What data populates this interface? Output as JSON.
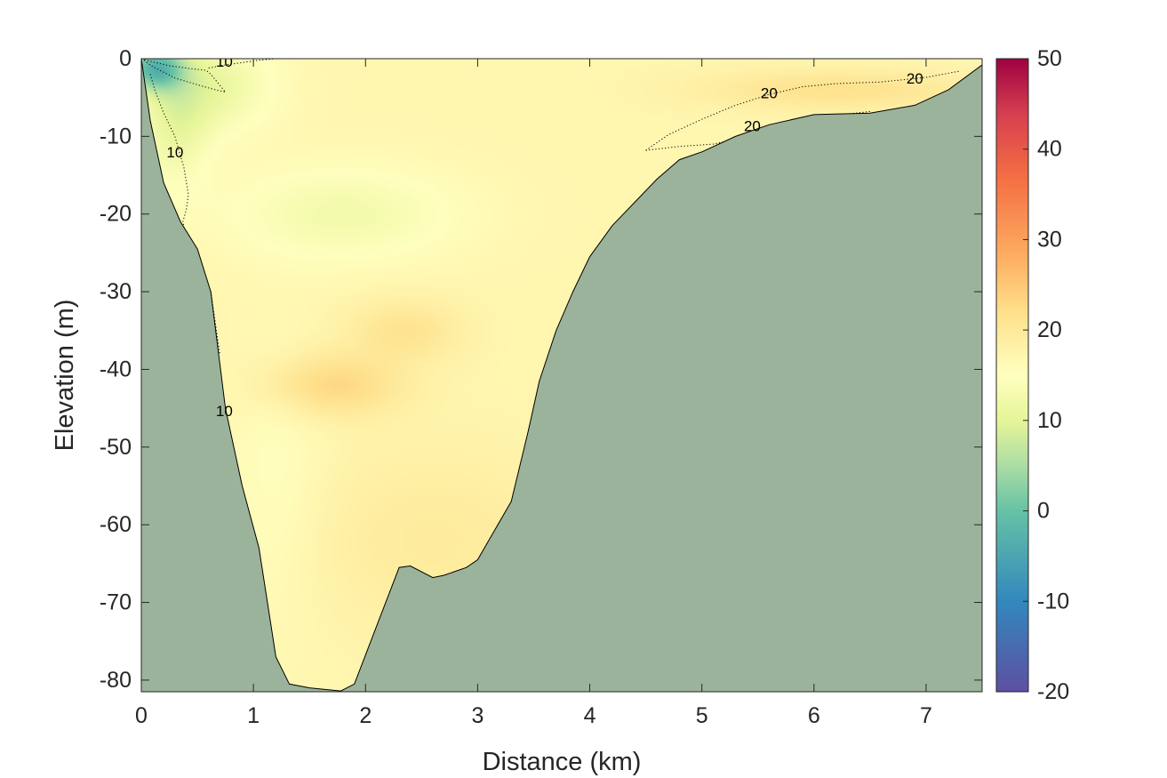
{
  "chart_data": {
    "type": "heatmap",
    "title": "",
    "xlabel": "Distance (km)",
    "ylabel": "Elevation (m)",
    "xlim": [
      0,
      7.5
    ],
    "ylim": [
      -81.5,
      0
    ],
    "x_ticks": [
      0,
      1,
      2,
      3,
      4,
      5,
      6,
      7
    ],
    "y_ticks": [
      0,
      -10,
      -20,
      -30,
      -40,
      -50,
      -60,
      -70,
      -80
    ],
    "grid": false,
    "colorbar": {
      "range": [
        -20,
        50
      ],
      "ticks": [
        50,
        40,
        30,
        20,
        10,
        0,
        -10,
        -20
      ],
      "colormap": "spectral",
      "stops": [
        {
          "value": -20,
          "color": "#5e4fa2"
        },
        {
          "value": -10,
          "color": "#3288bd"
        },
        {
          "value": 0,
          "color": "#66c2a5"
        },
        {
          "value": 5,
          "color": "#abdda4"
        },
        {
          "value": 10,
          "color": "#e6f598"
        },
        {
          "value": 15,
          "color": "#ffffbf"
        },
        {
          "value": 22,
          "color": "#fee08b"
        },
        {
          "value": 28,
          "color": "#fdae61"
        },
        {
          "value": 37,
          "color": "#f46d43"
        },
        {
          "value": 44,
          "color": "#d53e4f"
        },
        {
          "value": 50,
          "color": "#9e0142"
        }
      ]
    },
    "bathymetry": {
      "fill_color": "#9bb39b",
      "x": [
        0,
        0.08,
        0.2,
        0.35,
        0.5,
        0.62,
        0.75,
        0.9,
        1.05,
        1.2,
        1.32,
        1.5,
        1.78,
        1.9,
        2.1,
        2.3,
        2.4,
        2.6,
        2.7,
        2.9,
        3.0,
        3.1,
        3.3,
        3.45,
        3.55,
        3.7,
        3.85,
        4.0,
        4.2,
        4.4,
        4.6,
        4.8,
        5.0,
        5.3,
        5.6,
        6.0,
        6.5,
        6.9,
        7.2,
        7.5
      ],
      "y": [
        0,
        -8,
        -16,
        -21,
        -24.5,
        -30,
        -45,
        -55,
        -63,
        -77,
        -80.5,
        -81.0,
        -81.4,
        -80.5,
        -73,
        -65.5,
        -65.3,
        -66.8,
        -66.5,
        -65.5,
        -64.5,
        -62,
        -57,
        -48,
        -41.5,
        -35,
        -30,
        -25.5,
        -21.5,
        -18.5,
        -15.5,
        -13,
        -12,
        -10,
        -8.5,
        -7.2,
        -7,
        -6,
        -4,
        -0.8
      ]
    },
    "temperature_field": {
      "background": 17,
      "features": [
        {
          "x": 0.12,
          "y": -1.2,
          "rx": 0.25,
          "ry": 2.8,
          "value": 0
        },
        {
          "x": 0.6,
          "y": -3.5,
          "rx": 0.55,
          "ry": 6,
          "value": 11
        },
        {
          "x": 0.3,
          "y": -9,
          "rx": 0.3,
          "ry": 8,
          "value": 12
        },
        {
          "x": 1.8,
          "y": -20,
          "rx": 1.0,
          "ry": 6,
          "value": 12.5
        },
        {
          "x": 1.7,
          "y": -42,
          "rx": 0.6,
          "ry": 4,
          "value": 23
        },
        {
          "x": 2.35,
          "y": -35,
          "rx": 0.5,
          "ry": 4,
          "value": 21
        },
        {
          "x": 2.6,
          "y": -62,
          "rx": 1.2,
          "ry": 12,
          "value": 19.5
        },
        {
          "x": 6.2,
          "y": -4,
          "rx": 1.2,
          "ry": 2.5,
          "value": 21.5
        },
        {
          "x": 1.2,
          "y": -55,
          "rx": 0.45,
          "ry": 18,
          "value": 15
        }
      ]
    },
    "contours": [
      {
        "level": 10,
        "style": "dotted",
        "x": [
          0,
          0.1,
          0.25,
          0.45,
          0.58,
          0.62,
          0.75,
          0.66,
          0.56,
          0.3,
          0.1,
          0
        ],
        "y": [
          0,
          -0.4,
          -0.9,
          -1.3,
          -1.5,
          -2.0,
          -4.3,
          -4.0,
          -3.6,
          -2.5,
          -1.0,
          0
        ],
        "labels": [
          {
            "x": 0.74,
            "y": -0.5
          }
        ]
      },
      {
        "level": 10,
        "style": "dotted",
        "x": [
          0.6,
          0.75,
          0.9,
          1.05,
          1.2
        ],
        "y": [
          -1.2,
          -0.8,
          -0.5,
          -0.2,
          0
        ],
        "labels": []
      },
      {
        "level": 10,
        "style": "dotted",
        "x": [
          0.08,
          0.12,
          0.2,
          0.3,
          0.38,
          0.42,
          0.4,
          0.37,
          0.4,
          0.5,
          0.62,
          0.7
        ],
        "y": [
          -2,
          -4,
          -7,
          -10,
          -14,
          -17.5,
          -19.5,
          -21,
          -23,
          -26,
          -30,
          -38
        ],
        "labels": [
          {
            "x": 0.3,
            "y": -12.2
          },
          {
            "x": 0.74,
            "y": -45.5
          }
        ]
      },
      {
        "level": 20,
        "style": "dotted",
        "x": [
          4.5,
          4.7,
          5.0,
          5.3,
          5.6,
          5.9,
          6.2,
          6.6,
          7.0,
          7.3
        ],
        "y": [
          -11.8,
          -9.8,
          -7.8,
          -6.0,
          -4.6,
          -3.6,
          -3.2,
          -3.0,
          -2.4,
          -1.6
        ],
        "labels": [
          {
            "x": 5.6,
            "y": -4.6
          },
          {
            "x": 6.9,
            "y": -2.7
          }
        ]
      },
      {
        "level": 20,
        "style": "dotted",
        "x": [
          4.5,
          4.8,
          5.1,
          5.3,
          5.6,
          6.0,
          6.5
        ],
        "y": [
          -11.8,
          -11.3,
          -11.0,
          -10.4,
          -9.3,
          -7.6,
          -6.8
        ],
        "labels": [
          {
            "x": 5.45,
            "y": -8.8
          }
        ]
      }
    ]
  }
}
